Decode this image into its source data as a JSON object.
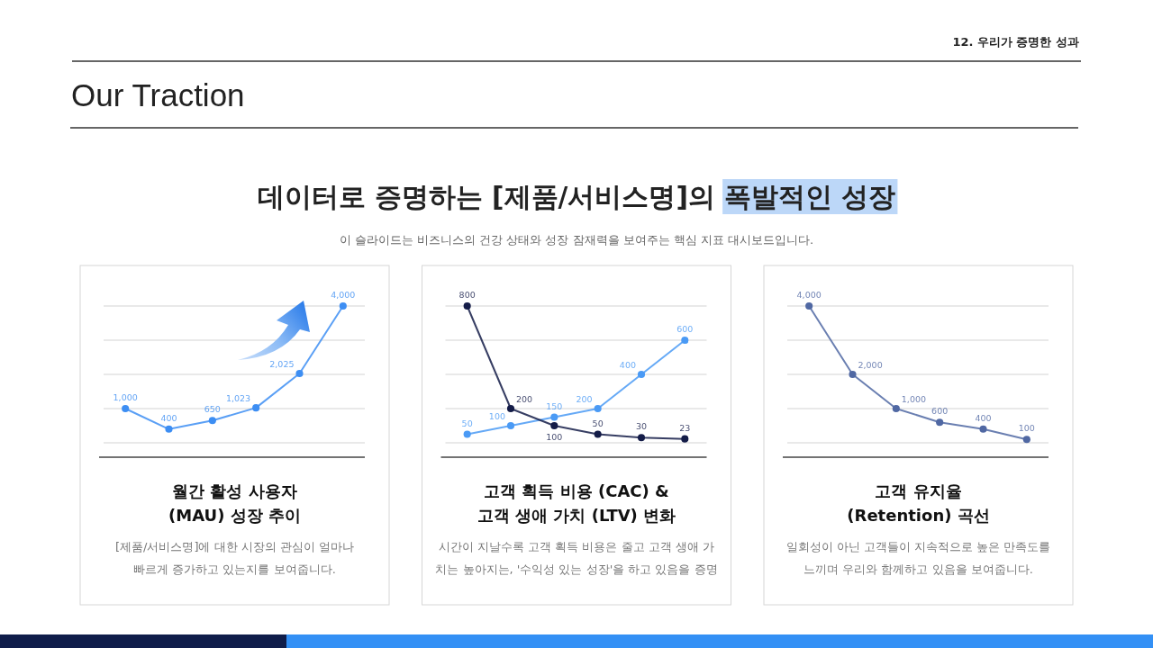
{
  "chart_data": [
    {
      "type": "other",
      "title": "데이터로 증명하는 [제품/서비스명]의 폭발적인 성장",
      "subtitle": "이 슬라이드는 비즈니스의 건강 상태와 성장 잠재력을 보여주는 핵심 지표 대시보드입니다.",
      "annotations": [
        "12. 우리가 증명한 성과",
        "Our Traction"
      ]
    },
    {
      "type": "line",
      "title": "월간 활성 사용자\n(MAU) 성장 추이",
      "annotations": [
        "[제품/서비스명]에 대한 시장의 관심이 얼마나\n빠르게 증가하고 있는지를 보여줍니다."
      ],
      "categories": [
        null,
        null,
        null,
        null,
        null,
        null
      ],
      "values": [
        1000,
        400,
        650,
        1023,
        2025,
        4000
      ],
      "value_labels": [
        "1,000",
        "400",
        "650",
        "1,023",
        "2,025",
        "4,000"
      ],
      "color": "#3d8ef3",
      "ylim": [
        0,
        4000
      ],
      "yticks": [
        {
          "value": 0,
          "label": null
        },
        {
          "value": 1000,
          "label": null
        },
        {
          "value": 2000,
          "label": null
        },
        {
          "value": 3000,
          "label": null
        },
        {
          "value": 4000,
          "label": null
        }
      ],
      "grid": "y",
      "marker": "circle"
    },
    {
      "type": "line",
      "title": "고객 획득 비용 (CAC) &\n고객 생애 가치 (LTV) 변화",
      "annotations": [
        "시간이 지날수록 고객 획득 비용은 줄고 고객 생애 가\n치는 높아지는, '수익성 있는 성장'을 하고 있음을 증명"
      ],
      "categories": [
        null,
        null,
        null,
        null,
        null,
        null
      ],
      "series": [
        {
          "color": "#4a9af5",
          "values": [
            50,
            100,
            150,
            200,
            400,
            600
          ]
        },
        {
          "color": "#141c48",
          "values": [
            800,
            200,
            100,
            50,
            30,
            23
          ]
        }
      ],
      "ylim": [
        0,
        800
      ],
      "yticks": [
        {
          "value": 0,
          "label": null
        },
        {
          "value": 200,
          "label": null
        },
        {
          "value": 400,
          "label": null
        },
        {
          "value": 600,
          "label": null
        },
        {
          "value": 800,
          "label": null
        }
      ],
      "grid": "y",
      "marker": "circle",
      "data_labels": true
    },
    {
      "type": "line",
      "title": "고객 유지율\n(Retention) 곡선",
      "annotations": [
        "일회성이 아닌 고객들이 지속적으로 높은 만족도를\n느끼며 우리와 함께하고 있음을 보여줍니다."
      ],
      "categories": [
        null,
        null,
        null,
        null,
        null,
        null
      ],
      "values": [
        4000,
        2000,
        1000,
        600,
        400,
        100
      ],
      "value_labels": [
        "4,000",
        "2,000",
        "1,000",
        "600",
        "400",
        "100"
      ],
      "color": "#5068a3",
      "ylim": [
        0,
        4000
      ],
      "yticks": [
        {
          "value": 0,
          "label": null
        },
        {
          "value": 1000,
          "label": null
        },
        {
          "value": 2000,
          "label": null
        },
        {
          "value": 3000,
          "label": null
        },
        {
          "value": 4000,
          "label": null
        }
      ],
      "grid": "y",
      "marker": "circle"
    }
  ]
}
